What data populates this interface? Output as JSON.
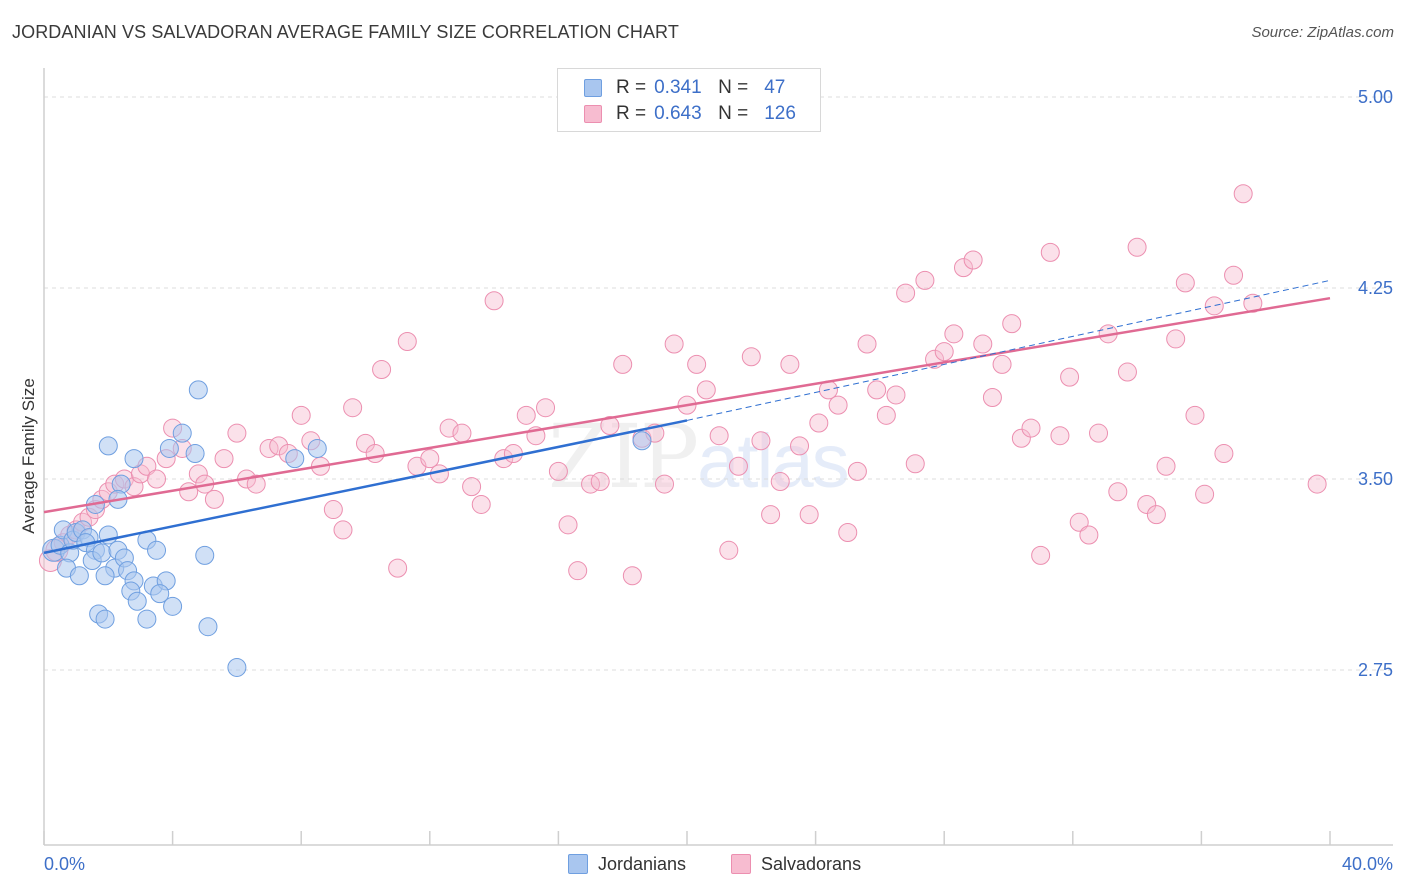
{
  "title": "JORDANIAN VS SALVADORAN AVERAGE FAMILY SIZE CORRELATION CHART",
  "source": "Source: ZipAtlas.com",
  "watermark": {
    "zip": "ZIP",
    "atlas": "atlas"
  },
  "legend": {
    "series1": {
      "r_label": "R =",
      "r_value": "0.341",
      "n_label": "N =",
      "n_value": "47",
      "color": "#a9c6ef",
      "border": "#6f9fe0"
    },
    "series2": {
      "r_label": "R =",
      "r_value": "0.643",
      "n_label": "N =",
      "n_value": "126",
      "color": "#f7bcd0",
      "border": "#ec8fb0"
    }
  },
  "bottom_legend": {
    "series1": "Jordanians",
    "series2": "Salvadorans"
  },
  "chart_data": {
    "type": "scatter",
    "title": "JORDANIAN VS SALVADORAN AVERAGE FAMILY SIZE CORRELATION CHART",
    "xlabel": "",
    "ylabel": "Average Family Size",
    "xlim": [
      0,
      40
    ],
    "ylim": [
      2.0,
      5.1
    ],
    "x_tick_labels": {
      "left": "0.0%",
      "right": "40.0%"
    },
    "y_ticks": [
      2.75,
      3.5,
      4.25,
      5.0
    ],
    "y_tick_labels": [
      "2.75",
      "3.50",
      "4.25",
      "5.00"
    ],
    "series": [
      {
        "name": "Jordanians",
        "color": "#6f9fe0",
        "fill": "rgba(169,198,239,0.55)",
        "trend_color": "#2f6fd1",
        "trend": {
          "x0": 0.0,
          "y0": 3.21,
          "x1": 20.0,
          "y1": 3.73,
          "dash_to_x": 40.0,
          "dash_to_y": 4.28
        },
        "points": [
          [
            0.3,
            3.22
          ],
          [
            0.5,
            3.24
          ],
          [
            0.8,
            3.21
          ],
          [
            0.6,
            3.3
          ],
          [
            0.9,
            3.26
          ],
          [
            1.0,
            3.29
          ],
          [
            1.2,
            3.3
          ],
          [
            1.4,
            3.27
          ],
          [
            1.3,
            3.25
          ],
          [
            1.6,
            3.22
          ],
          [
            0.7,
            3.15
          ],
          [
            1.1,
            3.12
          ],
          [
            1.5,
            3.18
          ],
          [
            1.8,
            3.21
          ],
          [
            2.0,
            3.28
          ],
          [
            2.3,
            3.22
          ],
          [
            2.2,
            3.15
          ],
          [
            2.5,
            3.19
          ],
          [
            1.9,
            3.12
          ],
          [
            1.6,
            3.4
          ],
          [
            2.0,
            3.63
          ],
          [
            2.4,
            3.48
          ],
          [
            2.3,
            3.42
          ],
          [
            2.8,
            3.58
          ],
          [
            3.2,
            3.26
          ],
          [
            3.5,
            3.22
          ],
          [
            3.9,
            3.62
          ],
          [
            4.3,
            3.68
          ],
          [
            4.7,
            3.6
          ],
          [
            4.8,
            3.85
          ],
          [
            5.0,
            3.2
          ],
          [
            2.6,
            3.14
          ],
          [
            2.8,
            3.1
          ],
          [
            3.4,
            3.08
          ],
          [
            3.8,
            3.1
          ],
          [
            2.7,
            3.06
          ],
          [
            3.6,
            3.05
          ],
          [
            2.9,
            3.02
          ],
          [
            4.0,
            3.0
          ],
          [
            1.7,
            2.97
          ],
          [
            1.9,
            2.95
          ],
          [
            3.2,
            2.95
          ],
          [
            5.1,
            2.92
          ],
          [
            6.0,
            2.76
          ],
          [
            8.5,
            3.62
          ],
          [
            7.8,
            3.58
          ],
          [
            18.6,
            3.65
          ]
        ]
      },
      {
        "name": "Salvadorans",
        "color": "#ec8fb0",
        "fill": "rgba(247,188,208,0.45)",
        "trend_color": "#e06a93",
        "trend": {
          "x0": 0.0,
          "y0": 3.37,
          "x1": 40.0,
          "y1": 4.21
        },
        "points": [
          [
            0.2,
            3.18
          ],
          [
            0.4,
            3.22
          ],
          [
            0.6,
            3.25
          ],
          [
            0.8,
            3.28
          ],
          [
            1.0,
            3.3
          ],
          [
            1.2,
            3.33
          ],
          [
            1.4,
            3.35
          ],
          [
            1.6,
            3.38
          ],
          [
            1.8,
            3.42
          ],
          [
            2.0,
            3.45
          ],
          [
            2.2,
            3.48
          ],
          [
            2.5,
            3.5
          ],
          [
            2.8,
            3.47
          ],
          [
            3.0,
            3.52
          ],
          [
            3.2,
            3.55
          ],
          [
            3.5,
            3.5
          ],
          [
            3.8,
            3.58
          ],
          [
            4.0,
            3.7
          ],
          [
            4.3,
            3.62
          ],
          [
            4.5,
            3.45
          ],
          [
            4.8,
            3.52
          ],
          [
            5.0,
            3.48
          ],
          [
            5.3,
            3.42
          ],
          [
            5.6,
            3.58
          ],
          [
            6.0,
            3.68
          ],
          [
            6.3,
            3.5
          ],
          [
            6.6,
            3.48
          ],
          [
            7.0,
            3.62
          ],
          [
            7.3,
            3.63
          ],
          [
            7.6,
            3.6
          ],
          [
            8.0,
            3.75
          ],
          [
            8.3,
            3.65
          ],
          [
            8.6,
            3.55
          ],
          [
            9.0,
            3.38
          ],
          [
            9.3,
            3.3
          ],
          [
            9.6,
            3.78
          ],
          [
            10.0,
            3.64
          ],
          [
            10.3,
            3.6
          ],
          [
            10.5,
            3.93
          ],
          [
            11.0,
            3.15
          ],
          [
            11.3,
            4.04
          ],
          [
            11.6,
            3.55
          ],
          [
            12.0,
            3.58
          ],
          [
            12.3,
            3.52
          ],
          [
            12.6,
            3.7
          ],
          [
            13.0,
            3.68
          ],
          [
            13.3,
            3.47
          ],
          [
            13.6,
            3.4
          ],
          [
            14.0,
            4.2
          ],
          [
            14.3,
            3.58
          ],
          [
            14.6,
            3.6
          ],
          [
            15.0,
            3.75
          ],
          [
            15.3,
            3.67
          ],
          [
            15.6,
            3.78
          ],
          [
            16.0,
            3.53
          ],
          [
            16.3,
            3.32
          ],
          [
            16.6,
            3.14
          ],
          [
            17.0,
            3.48
          ],
          [
            17.3,
            3.49
          ],
          [
            17.6,
            3.71
          ],
          [
            18.0,
            3.95
          ],
          [
            18.3,
            3.12
          ],
          [
            18.6,
            3.66
          ],
          [
            19.0,
            3.68
          ],
          [
            19.3,
            3.48
          ],
          [
            19.6,
            4.03
          ],
          [
            20.0,
            3.79
          ],
          [
            20.3,
            3.95
          ],
          [
            20.6,
            3.85
          ],
          [
            21.0,
            3.67
          ],
          [
            21.3,
            3.22
          ],
          [
            21.6,
            3.55
          ],
          [
            22.0,
            3.98
          ],
          [
            22.3,
            3.65
          ],
          [
            22.6,
            3.36
          ],
          [
            22.9,
            3.49
          ],
          [
            23.2,
            3.95
          ],
          [
            23.5,
            3.63
          ],
          [
            23.8,
            3.36
          ],
          [
            24.1,
            3.72
          ],
          [
            24.4,
            3.85
          ],
          [
            24.7,
            3.79
          ],
          [
            25.0,
            3.29
          ],
          [
            25.3,
            3.53
          ],
          [
            25.6,
            4.03
          ],
          [
            25.9,
            3.85
          ],
          [
            26.2,
            3.75
          ],
          [
            26.5,
            3.83
          ],
          [
            26.8,
            4.23
          ],
          [
            27.1,
            3.56
          ],
          [
            27.4,
            4.28
          ],
          [
            27.7,
            3.97
          ],
          [
            28.0,
            4.0
          ],
          [
            28.3,
            4.07
          ],
          [
            28.6,
            4.33
          ],
          [
            28.9,
            4.36
          ],
          [
            29.2,
            4.03
          ],
          [
            29.5,
            3.82
          ],
          [
            29.8,
            3.95
          ],
          [
            30.1,
            4.11
          ],
          [
            30.4,
            3.66
          ],
          [
            30.7,
            3.7
          ],
          [
            31.0,
            3.2
          ],
          [
            31.3,
            4.39
          ],
          [
            31.6,
            3.67
          ],
          [
            31.9,
            3.9
          ],
          [
            32.2,
            3.33
          ],
          [
            32.5,
            3.28
          ],
          [
            32.8,
            3.68
          ],
          [
            33.1,
            4.07
          ],
          [
            33.4,
            3.45
          ],
          [
            33.7,
            3.92
          ],
          [
            34.0,
            4.41
          ],
          [
            34.3,
            3.4
          ],
          [
            34.6,
            3.36
          ],
          [
            34.9,
            3.55
          ],
          [
            35.2,
            4.05
          ],
          [
            35.5,
            4.27
          ],
          [
            35.8,
            3.75
          ],
          [
            36.1,
            3.44
          ],
          [
            36.4,
            4.18
          ],
          [
            36.7,
            3.6
          ],
          [
            37.0,
            4.3
          ],
          [
            37.3,
            4.62
          ],
          [
            37.6,
            4.19
          ],
          [
            39.6,
            3.48
          ]
        ]
      }
    ]
  }
}
